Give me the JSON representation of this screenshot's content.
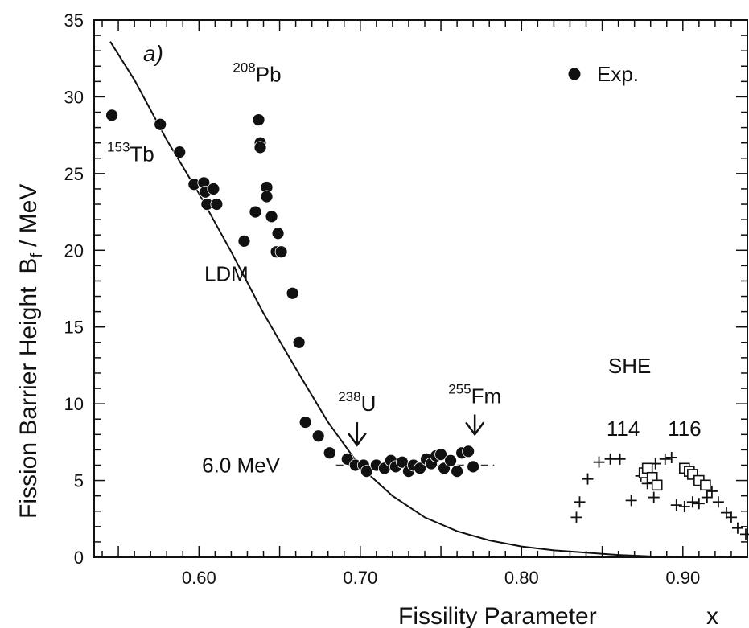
{
  "chart_data": {
    "type": "scatter",
    "panel_label": "a)",
    "xlabel": "Fissility Parameter",
    "xlabel_symbol": "x",
    "ylabel": "Fission Barrier Height",
    "ylabel_symbol": "B",
    "ylabel_subscript": "f",
    "ylabel_unit": "/ MeV",
    "xlim": [
      0.535,
      0.94
    ],
    "ylim": [
      0,
      35
    ],
    "x_ticks": [
      0.6,
      0.7,
      0.8,
      0.9
    ],
    "x_tick_labels": [
      "0.60",
      "0.70",
      "0.80",
      "0.90"
    ],
    "y_ticks": [
      0,
      5,
      10,
      15,
      20,
      25,
      30,
      35
    ],
    "y_tick_labels": [
      "0",
      "5",
      "10",
      "15",
      "20",
      "25",
      "30",
      "35"
    ],
    "legend": {
      "marker": "filled-circle",
      "label": "Exp.",
      "position": "top-right"
    },
    "series": [
      {
        "name": "Exp.",
        "marker": "filled-circle",
        "points": [
          [
            0.546,
            28.8
          ],
          [
            0.576,
            28.2
          ],
          [
            0.588,
            26.4
          ],
          [
            0.597,
            24.3
          ],
          [
            0.603,
            24.4
          ],
          [
            0.604,
            23.8
          ],
          [
            0.605,
            23.0
          ],
          [
            0.609,
            24.0
          ],
          [
            0.611,
            23.0
          ],
          [
            0.628,
            20.6
          ],
          [
            0.635,
            22.5
          ],
          [
            0.637,
            28.5
          ],
          [
            0.638,
            27.0
          ],
          [
            0.638,
            26.7
          ],
          [
            0.642,
            24.1
          ],
          [
            0.642,
            23.5
          ],
          [
            0.645,
            22.2
          ],
          [
            0.648,
            19.9
          ],
          [
            0.649,
            21.1
          ],
          [
            0.651,
            19.9
          ],
          [
            0.658,
            17.2
          ],
          [
            0.662,
            14.0
          ],
          [
            0.666,
            8.8
          ],
          [
            0.674,
            7.9
          ],
          [
            0.681,
            6.8
          ],
          [
            0.692,
            6.4
          ],
          [
            0.697,
            6.0
          ],
          [
            0.702,
            6.0
          ],
          [
            0.704,
            5.6
          ],
          [
            0.71,
            6.0
          ],
          [
            0.715,
            5.8
          ],
          [
            0.719,
            6.3
          ],
          [
            0.722,
            5.9
          ],
          [
            0.726,
            6.2
          ],
          [
            0.73,
            5.6
          ],
          [
            0.733,
            6.0
          ],
          [
            0.737,
            5.8
          ],
          [
            0.741,
            6.4
          ],
          [
            0.744,
            6.1
          ],
          [
            0.747,
            6.6
          ],
          [
            0.75,
            6.7
          ],
          [
            0.752,
            5.8
          ],
          [
            0.756,
            6.3
          ],
          [
            0.76,
            5.6
          ],
          [
            0.763,
            6.8
          ],
          [
            0.767,
            6.9
          ],
          [
            0.77,
            5.9
          ]
        ]
      },
      {
        "name": "SHE +",
        "marker": "plus",
        "points": [
          [
            0.834,
            2.6
          ],
          [
            0.836,
            3.6
          ],
          [
            0.841,
            5.1
          ],
          [
            0.848,
            6.2
          ],
          [
            0.855,
            6.4
          ],
          [
            0.861,
            6.4
          ],
          [
            0.868,
            3.7
          ],
          [
            0.874,
            5.3
          ],
          [
            0.878,
            4.8
          ],
          [
            0.882,
            3.9
          ],
          [
            0.883,
            6.1
          ],
          [
            0.889,
            6.4
          ],
          [
            0.893,
            6.5
          ],
          [
            0.896,
            3.4
          ],
          [
            0.901,
            3.3
          ],
          [
            0.906,
            3.6
          ],
          [
            0.91,
            3.5
          ],
          [
            0.915,
            3.9
          ],
          [
            0.918,
            4.3
          ],
          [
            0.922,
            3.6
          ],
          [
            0.927,
            2.9
          ],
          [
            0.93,
            2.6
          ],
          [
            0.934,
            1.9
          ],
          [
            0.939,
            1.5
          ]
        ]
      },
      {
        "name": "SHE squares",
        "marker": "open-square",
        "points": [
          [
            0.876,
            5.5
          ],
          [
            0.878,
            5.8
          ],
          [
            0.881,
            5.2
          ],
          [
            0.884,
            4.7
          ],
          [
            0.901,
            5.8
          ],
          [
            0.904,
            5.6
          ],
          [
            0.906,
            5.4
          ],
          [
            0.91,
            5.0
          ],
          [
            0.914,
            4.7
          ]
        ]
      }
    ],
    "ldm_curve": {
      "label": "LDM",
      "points": [
        [
          0.545,
          33.6
        ],
        [
          0.56,
          31.1
        ],
        [
          0.58,
          27.2
        ],
        [
          0.6,
          23.7
        ],
        [
          0.62,
          19.9
        ],
        [
          0.64,
          15.9
        ],
        [
          0.66,
          12.3
        ],
        [
          0.68,
          8.8
        ],
        [
          0.7,
          5.9
        ],
        [
          0.72,
          4.0
        ],
        [
          0.74,
          2.6
        ],
        [
          0.76,
          1.7
        ],
        [
          0.78,
          1.1
        ],
        [
          0.8,
          0.7
        ],
        [
          0.82,
          0.45
        ],
        [
          0.84,
          0.3
        ],
        [
          0.86,
          0.15
        ],
        [
          0.88,
          0.06
        ],
        [
          0.9,
          0.02
        ],
        [
          0.94,
          0.0
        ]
      ]
    },
    "reference_line": {
      "y": 6.0,
      "x_range": [
        0.685,
        0.783
      ],
      "label": "6.0 MeV",
      "style": "dashed"
    },
    "arrows": [
      {
        "label_mass": "238",
        "label_element": "U",
        "x": 0.698,
        "y_from": 8.8,
        "y_to": 7.3
      },
      {
        "label_mass": "255",
        "label_element": "Fm",
        "x": 0.771,
        "y_from": 9.3,
        "y_to": 8.0
      }
    ],
    "annotations": [
      {
        "mass": "208",
        "element": "Pb",
        "x": 0.636,
        "y": 31.0
      },
      {
        "mass": "153",
        "element": "Tb",
        "x": 0.543,
        "y": 25.8
      },
      {
        "text": "LDM",
        "x": 0.617,
        "y": 18.0
      },
      {
        "text": "SHE",
        "x": 0.867,
        "y": 12.0
      },
      {
        "text": "114",
        "x": 0.863,
        "y": 7.9
      },
      {
        "text": "116",
        "x": 0.901,
        "y": 7.9
      }
    ]
  }
}
